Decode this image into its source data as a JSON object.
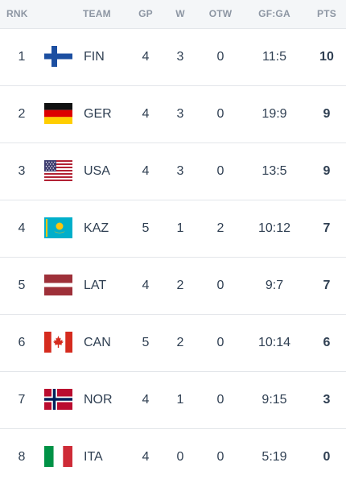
{
  "headers": {
    "rnk": "RNK",
    "team": "TEAM",
    "gp": "GP",
    "w": "W",
    "otw": "OTW",
    "gfga": "GF:GA",
    "pts": "PTS"
  },
  "rows": [
    {
      "rnk": "1",
      "team": "FIN",
      "flag": "finland-flag",
      "gp": "4",
      "w": "3",
      "otw": "0",
      "gfga": "11:5",
      "pts": "10"
    },
    {
      "rnk": "2",
      "team": "GER",
      "flag": "germany-flag",
      "gp": "4",
      "w": "3",
      "otw": "0",
      "gfga": "19:9",
      "pts": "9"
    },
    {
      "rnk": "3",
      "team": "USA",
      "flag": "usa-flag",
      "gp": "4",
      "w": "3",
      "otw": "0",
      "gfga": "13:5",
      "pts": "9"
    },
    {
      "rnk": "4",
      "team": "KAZ",
      "flag": "kazakhstan-flag",
      "gp": "5",
      "w": "1",
      "otw": "2",
      "gfga": "10:12",
      "pts": "7"
    },
    {
      "rnk": "5",
      "team": "LAT",
      "flag": "latvia-flag",
      "gp": "4",
      "w": "2",
      "otw": "0",
      "gfga": "9:7",
      "pts": "7"
    },
    {
      "rnk": "6",
      "team": "CAN",
      "flag": "canada-flag",
      "gp": "5",
      "w": "2",
      "otw": "0",
      "gfga": "10:14",
      "pts": "6"
    },
    {
      "rnk": "7",
      "team": "NOR",
      "flag": "norway-flag",
      "gp": "4",
      "w": "1",
      "otw": "0",
      "gfga": "9:15",
      "pts": "3"
    },
    {
      "rnk": "8",
      "team": "ITA",
      "flag": "italy-flag",
      "gp": "4",
      "w": "0",
      "otw": "0",
      "gfga": "5:19",
      "pts": "0"
    }
  ],
  "colors": {
    "header_bg": "#f4f6f8",
    "header_text": "#8d96a3",
    "body_text": "#2f3f52",
    "row_divider": "#e3e6ea"
  }
}
